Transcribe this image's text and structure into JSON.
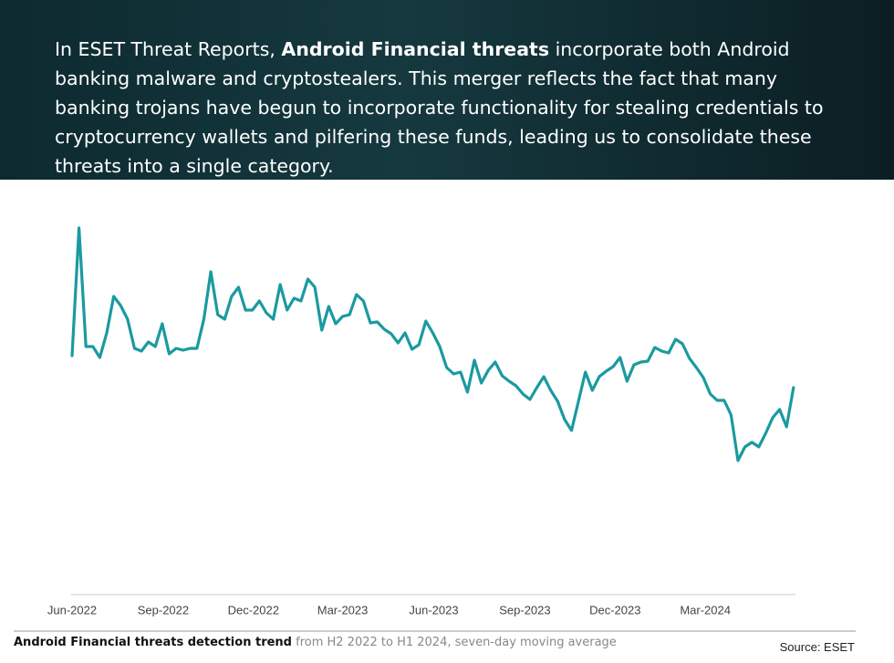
{
  "header": {
    "text_before": "In ESET Threat Reports, ",
    "text_bold": "Android Financial threats",
    "text_after": " incorporate both Android banking malware and cryptostealers. This merger reflects the fact that many banking trojans have begun to incorporate functionality for stealing credentials to cryptocurrency wallets and pilfering these funds, leading us to consolidate these threats into a single category."
  },
  "chart_data": {
    "type": "line",
    "color": "#1a9aa0",
    "x": [
      0,
      7,
      14,
      21,
      28,
      35,
      42,
      49,
      56,
      63,
      70,
      77,
      84,
      91,
      98,
      105,
      112,
      119,
      126,
      133,
      140,
      147,
      154,
      161,
      168,
      175,
      182,
      189,
      196,
      203,
      210,
      217,
      224,
      231,
      238,
      245,
      252,
      259,
      266,
      273,
      280,
      287,
      294,
      301,
      308,
      315,
      322,
      329,
      336,
      343,
      350,
      357,
      364,
      371,
      378,
      385,
      392,
      399,
      406,
      413,
      420,
      427,
      434,
      441,
      448,
      455,
      462,
      469,
      476,
      483,
      490,
      497,
      504,
      511,
      518,
      525,
      532,
      539,
      546,
      553,
      560,
      567,
      574,
      581,
      588,
      595,
      602,
      609,
      616,
      623,
      630,
      637,
      644,
      651,
      658,
      665,
      672,
      679,
      686,
      693,
      700,
      707,
      714,
      721,
      728
    ],
    "values": [
      262,
      402,
      272,
      272,
      260,
      287,
      327,
      317,
      302,
      270,
      267,
      277,
      272,
      297,
      264,
      270,
      268,
      270,
      270,
      302,
      354,
      307,
      302,
      327,
      337,
      312,
      312,
      322,
      309,
      302,
      340,
      312,
      325,
      322,
      346,
      337,
      290,
      316,
      297,
      305,
      307,
      329,
      322,
      298,
      299,
      291,
      286,
      276,
      287,
      269,
      274,
      300,
      287,
      272,
      249,
      242,
      244,
      222,
      257,
      232,
      246,
      255,
      240,
      234,
      229,
      220,
      214,
      227,
      239,
      224,
      212,
      192,
      180,
      212,
      244,
      224,
      239,
      245,
      250,
      260,
      234,
      252,
      255,
      256,
      271,
      267,
      265,
      280,
      275,
      259,
      249,
      238,
      220,
      213,
      213,
      197,
      147,
      162,
      167,
      162,
      177,
      194,
      203,
      184,
      227
    ],
    "xlim": [
      0,
      730
    ],
    "xticks": [
      {
        "value": 0,
        "label": "Jun-2022"
      },
      {
        "value": 92,
        "label": "Sep-2022"
      },
      {
        "value": 183,
        "label": "Dec-2022"
      },
      {
        "value": 273,
        "label": "Mar-2023"
      },
      {
        "value": 365,
        "label": "Jun-2023"
      },
      {
        "value": 457,
        "label": "Sep-2023"
      },
      {
        "value": 548,
        "label": "Dec-2023"
      },
      {
        "value": 639,
        "label": "Mar-2024"
      }
    ],
    "ylim": [
      0,
      450
    ],
    "caption_bold": "Android Financial threats detection trend",
    "caption_rest": " from H2 2022 to H1 2024, seven-day moving average",
    "source": "Source: ESET"
  }
}
